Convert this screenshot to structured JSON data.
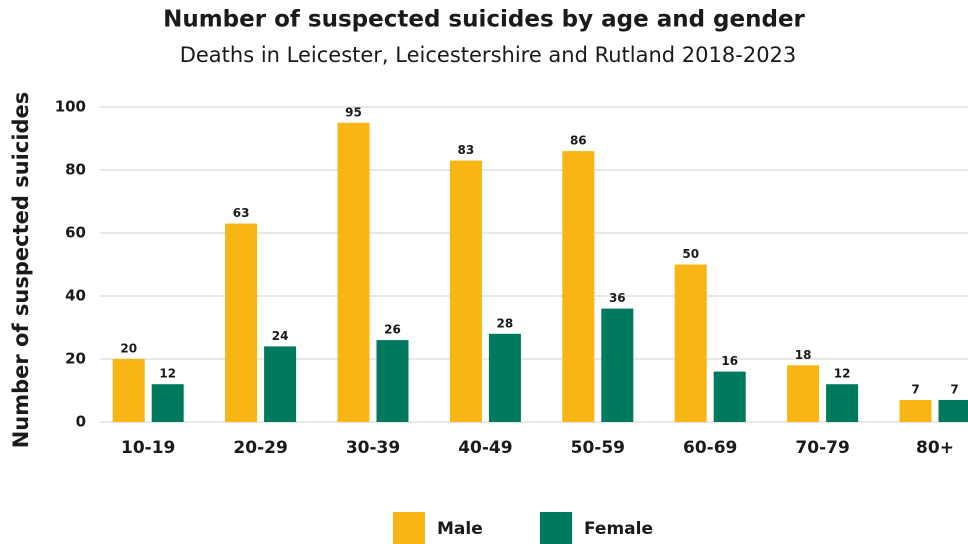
{
  "chart_data": {
    "type": "bar",
    "title": "Number of suspected suicides by age and gender",
    "subtitle": "Deaths in Leicester, Leicestershire and Rutland 2018-2023",
    "y_label": "Number of suspected suicides",
    "categories": [
      "10-19",
      "20-29",
      "30-39",
      "40-49",
      "50-59",
      "60-69",
      "70-79",
      "80+"
    ],
    "series": [
      {
        "name": "Male",
        "color": "#f8b514",
        "values": [
          20,
          63,
          95,
          83,
          86,
          50,
          18,
          7
        ]
      },
      {
        "name": "Female",
        "color": "#007a5e",
        "values": [
          12,
          24,
          26,
          28,
          36,
          16,
          12,
          7
        ]
      }
    ],
    "ylim": [
      0,
      100
    ],
    "yticks": [
      0,
      20,
      40,
      60,
      80,
      100
    ],
    "grid": true,
    "legend": "bottom"
  }
}
